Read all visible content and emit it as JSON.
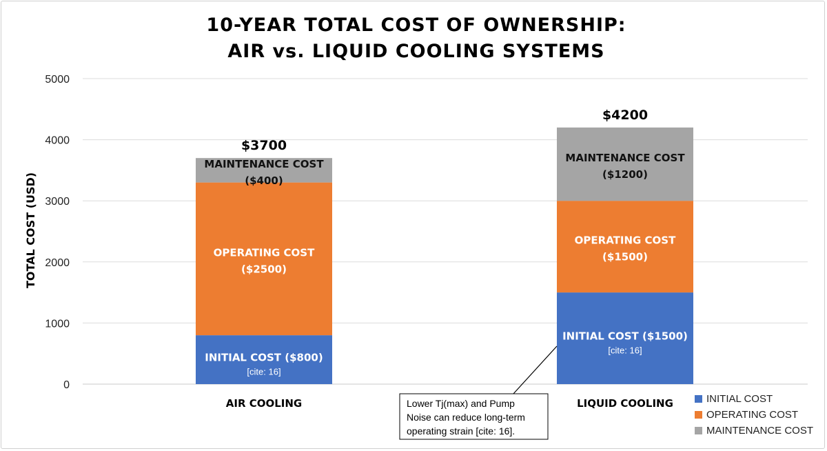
{
  "chart_data": {
    "type": "bar",
    "stacked": true,
    "title": [
      "10-YEAR TOTAL COST OF OWNERSHIP:",
      "AIR vs. LIQUID COOLING SYSTEMS"
    ],
    "xlabel": "",
    "ylabel": "TOTAL COST (USD)",
    "ylim": [
      0,
      5000
    ],
    "yticks": [
      0,
      1000,
      2000,
      3000,
      4000,
      5000
    ],
    "grid": true,
    "legend_position": "bottom-right",
    "categories": [
      "AIR COOLING",
      "LIQUID COOLING"
    ],
    "totals": [
      "$3700",
      "$4200"
    ],
    "series": [
      {
        "name": "INITIAL COST",
        "color": "#4472C4",
        "values": [
          800,
          1500
        ],
        "labels": [
          {
            "text": "INITIAL COST ($800)",
            "cite": "[cite: 16]"
          },
          {
            "text": "INITIAL COST ($1500)",
            "cite": "[cite: 16]"
          }
        ]
      },
      {
        "name": "OPERATING COST",
        "color": "#ED7D31",
        "values": [
          2500,
          1500
        ],
        "labels": [
          {
            "line1": "OPERATING COST",
            "line2": "($2500)"
          },
          {
            "line1": "OPERATING COST",
            "line2": "($1500)"
          }
        ]
      },
      {
        "name": "MAINTENANCE COST",
        "color": "#A5A5A5",
        "values": [
          400,
          1200
        ],
        "labels": [
          {
            "line1": "MAINTENANCE COST",
            "line2": "($400)"
          },
          {
            "line1": "MAINTENANCE COST",
            "line2": "($1200)"
          }
        ]
      }
    ],
    "annotation": {
      "lines": [
        "Lower Tj(max) and Pump",
        "Noise can reduce long-term",
        "operating strain [cite: 16]."
      ],
      "points_to": "LIQUID COOLING INITIAL COST"
    }
  }
}
